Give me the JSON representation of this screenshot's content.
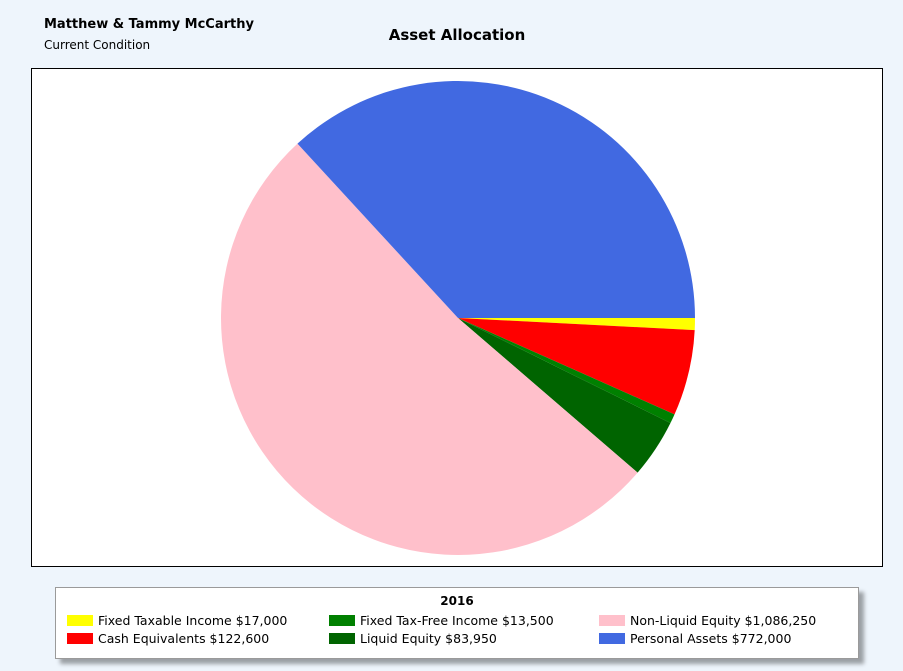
{
  "header": {
    "client_name": "Matthew & Tammy McCarthy",
    "condition": "Current Condition"
  },
  "chart_data": {
    "type": "pie",
    "title": "Asset Allocation",
    "legend_title": "2016",
    "legend_placement": "bottom",
    "slices": [
      {
        "label": "Fixed Taxable Income $17,000",
        "value": 17000,
        "color": "#ffff00"
      },
      {
        "label": "Cash Equivalents $122,600",
        "value": 122600,
        "color": "#ff0000"
      },
      {
        "label": "Fixed Tax-Free Income $13,500",
        "value": 13500,
        "color": "#008000"
      },
      {
        "label": "Liquid Equity $83,950",
        "value": 83950,
        "color": "#006400"
      },
      {
        "label": "Non-Liquid Equity $1,086,250",
        "value": 1086250,
        "color": "#ffc0cb"
      },
      {
        "label": "Personal Assets $772,000",
        "value": 772000,
        "color": "#4169e1"
      }
    ]
  }
}
